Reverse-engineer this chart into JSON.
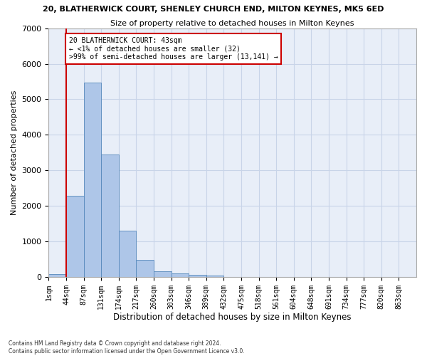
{
  "title": "20, BLATHERWICK COURT, SHENLEY CHURCH END, MILTON KEYNES, MK5 6ED",
  "subtitle": "Size of property relative to detached houses in Milton Keynes",
  "xlabel": "Distribution of detached houses by size in Milton Keynes",
  "ylabel": "Number of detached properties",
  "footnote1": "Contains HM Land Registry data © Crown copyright and database right 2024.",
  "footnote2": "Contains public sector information licensed under the Open Government Licence v3.0.",
  "bin_labels": [
    "1sqm",
    "44sqm",
    "87sqm",
    "131sqm",
    "174sqm",
    "217sqm",
    "260sqm",
    "303sqm",
    "346sqm",
    "389sqm",
    "432sqm",
    "475sqm",
    "518sqm",
    "561sqm",
    "604sqm",
    "648sqm",
    "691sqm",
    "734sqm",
    "777sqm",
    "820sqm",
    "863sqm"
  ],
  "bar_heights": [
    80,
    2280,
    5470,
    3440,
    1310,
    480,
    165,
    95,
    55,
    40,
    0,
    0,
    0,
    0,
    0,
    0,
    0,
    0,
    0,
    0
  ],
  "bar_color": "#aec6e8",
  "bar_edge_color": "#5588bb",
  "grid_color": "#c8d4e8",
  "bg_color": "#e8eef8",
  "property_line_bin": 0.5,
  "annotation_text_line1": "20 BLATHERWICK COURT: 43sqm",
  "annotation_text_line2": "← <1% of detached houses are smaller (32)",
  "annotation_text_line3": ">99% of semi-detached houses are larger (13,141) →",
  "annotation_box_color": "#cc0000",
  "ylim": [
    0,
    7000
  ],
  "yticks": [
    0,
    1000,
    2000,
    3000,
    4000,
    5000,
    6000,
    7000
  ]
}
